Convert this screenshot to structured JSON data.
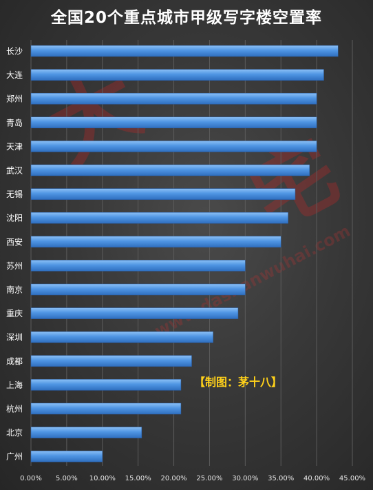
{
  "chart_data": {
    "type": "bar",
    "orientation": "horizontal",
    "title": "全国20个重点城市甲级写字楼空置率",
    "categories": [
      "长沙",
      "大连",
      "郑州",
      "青岛",
      "天津",
      "武汉",
      "无锡",
      "沈阳",
      "西安",
      "苏州",
      "南京",
      "重庆",
      "深圳",
      "成都",
      "上海",
      "杭州",
      "北京",
      "广州"
    ],
    "values": [
      43.0,
      41.0,
      40.0,
      40.0,
      40.0,
      39.0,
      37.0,
      36.0,
      35.0,
      30.0,
      30.0,
      29.0,
      25.5,
      22.5,
      21.0,
      21.0,
      15.5,
      10.0
    ],
    "xlim": [
      0,
      45
    ],
    "x_ticks": [
      0,
      5,
      10,
      15,
      20,
      25,
      30,
      35,
      40,
      45
    ],
    "x_tick_labels": [
      "0.00%",
      "5.00%",
      "10.00%",
      "15.00%",
      "20.00%",
      "25.00%",
      "30.00%",
      "35.00%",
      "40.00%",
      "45.00%"
    ],
    "grid": "vertical",
    "legend": "none",
    "bar_color": "#4f95e3",
    "background_color": "#3a3a3a",
    "annotation": "【制图：茅十八】",
    "annotation_color": "#ffd11a"
  },
  "watermark": {
    "text_a": "大",
    "text_b": "宅",
    "url": "www.dashanwuhai.com",
    "color": "#be2828"
  }
}
